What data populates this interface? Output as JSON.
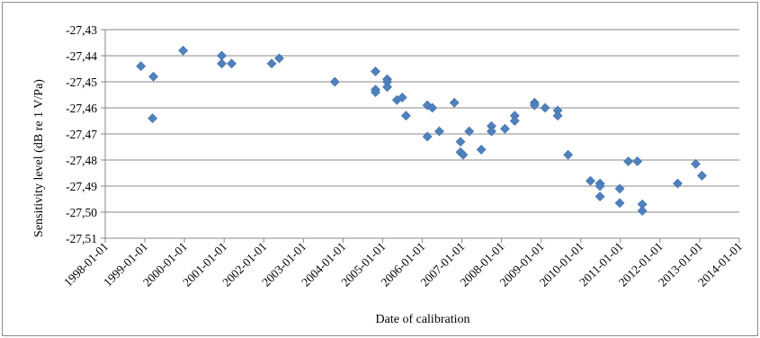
{
  "chart_data": {
    "type": "scatter",
    "title": "",
    "xlabel": "Date of calibration",
    "ylabel": "Sensitivity level (dB re 1 V/Pa)",
    "ylim": [
      -27.51,
      -27.43
    ],
    "yticks": [
      -27.43,
      -27.44,
      -27.45,
      -27.46,
      -27.47,
      -27.48,
      -27.49,
      -27.5,
      -27.51
    ],
    "ytick_labels": [
      "-27,43",
      "-27,44",
      "-27,45",
      "-27,46",
      "-27,47",
      "-27,48",
      "-27,49",
      "-27,50",
      "-27,51"
    ],
    "xlim": [
      "1998-01-01",
      "2014-01-01"
    ],
    "xtick_labels": [
      "1998-01-01",
      "1999-01-01",
      "2000-01-01",
      "2001-01-01",
      "2002-01-01",
      "2003-01-01",
      "2004-01-01",
      "2005-01-01",
      "2006-01-01",
      "2007-01-01",
      "2008-01-01",
      "2009-01-01",
      "2010-01-01",
      "2011-01-01",
      "2012-01-01",
      "2013-01-01",
      "2014-01-01"
    ],
    "grid": "horizontal",
    "legend": "none",
    "marker": "diamond",
    "series_color": "#4f81bd",
    "points": [
      {
        "x": "1998-11-26",
        "y": -27.444
      },
      {
        "x": "1999-03-21",
        "y": -27.448
      },
      {
        "x": "1999-03-13",
        "y": -27.464
      },
      {
        "x": "1999-12-20",
        "y": -27.438
      },
      {
        "x": "2000-12-10",
        "y": -27.44
      },
      {
        "x": "2000-12-10",
        "y": -27.443
      },
      {
        "x": "2001-03-11",
        "y": -27.443
      },
      {
        "x": "2002-03-15",
        "y": -27.443
      },
      {
        "x": "2002-05-24",
        "y": -27.441
      },
      {
        "x": "2003-10-18",
        "y": -27.45
      },
      {
        "x": "2004-10-27",
        "y": -27.446
      },
      {
        "x": "2004-10-27",
        "y": -27.453
      },
      {
        "x": "2004-10-27",
        "y": -27.454
      },
      {
        "x": "2005-02-12",
        "y": -27.449
      },
      {
        "x": "2005-02-12",
        "y": -27.45
      },
      {
        "x": "2005-02-12",
        "y": -27.452
      },
      {
        "x": "2005-05-12",
        "y": -27.457
      },
      {
        "x": "2005-07-01",
        "y": -27.456
      },
      {
        "x": "2005-08-04",
        "y": -27.463
      },
      {
        "x": "2006-02-17",
        "y": -27.459
      },
      {
        "x": "2006-02-17",
        "y": -27.471
      },
      {
        "x": "2006-04-04",
        "y": -27.46
      },
      {
        "x": "2006-06-07",
        "y": -27.469
      },
      {
        "x": "2006-10-24",
        "y": -27.458
      },
      {
        "x": "2006-12-19",
        "y": -27.473
      },
      {
        "x": "2006-12-19",
        "y": -27.477
      },
      {
        "x": "2007-01-13",
        "y": -27.478
      },
      {
        "x": "2007-03-10",
        "y": -27.469
      },
      {
        "x": "2007-06-29",
        "y": -27.476
      },
      {
        "x": "2007-10-01",
        "y": -27.467
      },
      {
        "x": "2007-10-01",
        "y": -27.469
      },
      {
        "x": "2008-02-02",
        "y": -27.468
      },
      {
        "x": "2008-05-02",
        "y": -27.463
      },
      {
        "x": "2008-05-02",
        "y": -27.465
      },
      {
        "x": "2008-11-01",
        "y": -27.458
      },
      {
        "x": "2008-11-01",
        "y": -27.459
      },
      {
        "x": "2009-02-06",
        "y": -27.46
      },
      {
        "x": "2009-06-02",
        "y": -27.461
      },
      {
        "x": "2009-06-02",
        "y": -27.463
      },
      {
        "x": "2009-09-06",
        "y": -27.478
      },
      {
        "x": "2010-03-31",
        "y": -27.488
      },
      {
        "x": "2010-06-27",
        "y": -27.489
      },
      {
        "x": "2010-06-27",
        "y": -27.49
      },
      {
        "x": "2010-06-27",
        "y": -27.494
      },
      {
        "x": "2010-12-26",
        "y": -27.491
      },
      {
        "x": "2010-12-26",
        "y": -27.4965
      },
      {
        "x": "2011-03-15",
        "y": -27.4805
      },
      {
        "x": "2011-06-07",
        "y": -27.4805
      },
      {
        "x": "2011-07-22",
        "y": -27.497
      },
      {
        "x": "2011-07-22",
        "y": -27.4995
      },
      {
        "x": "2012-06-12",
        "y": -27.489
      },
      {
        "x": "2012-11-25",
        "y": -27.4815
      },
      {
        "x": "2013-01-22",
        "y": -27.486
      }
    ]
  }
}
